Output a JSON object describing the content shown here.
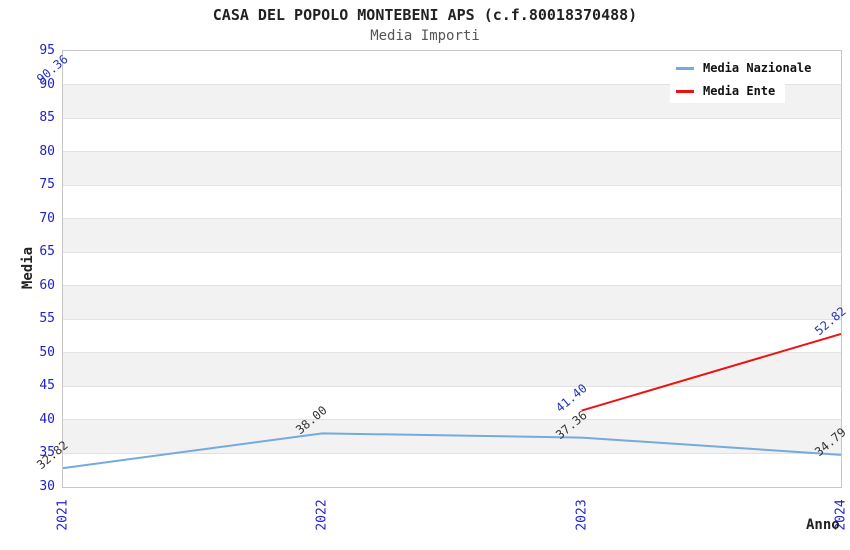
{
  "chart_data": {
    "type": "line",
    "title": "CASA DEL POPOLO MONTEBENI APS (c.f.80018370488)",
    "subtitle": "Media Importi",
    "xlabel": "Anno",
    "ylabel": "Media",
    "categories": [
      "2021",
      "2022",
      "2023",
      "2024"
    ],
    "series": [
      {
        "name": "Media Nazionale",
        "color": "#74aade",
        "label_color": "#333333",
        "values": [
          32.82,
          38.0,
          37.36,
          34.79
        ],
        "labels": [
          "32.82",
          "38.00",
          "37.36",
          "34.79"
        ]
      },
      {
        "name": "Media Ente",
        "color": "#ee1111",
        "label_color": "#2233bb",
        "values": [
          90.36,
          null,
          41.4,
          52.82
        ],
        "labels": [
          "90.36",
          null,
          "41.40",
          "52.82"
        ]
      }
    ],
    "ylim": [
      30,
      95
    ],
    "ytick_step": 5,
    "grid": "horizontal-bands",
    "band_color": "#f2f2f2",
    "tick_label_color": "#2222cc",
    "legend_position": "top-right"
  }
}
